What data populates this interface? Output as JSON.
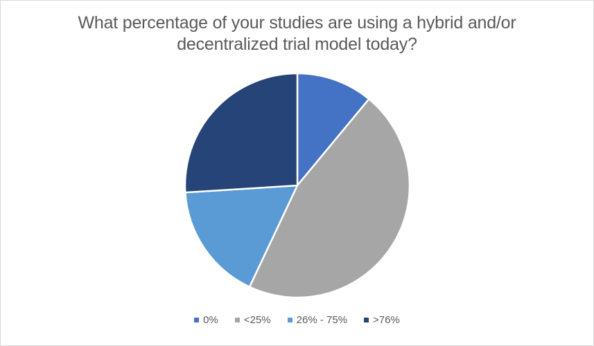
{
  "title": {
    "lines": [
      "What percentage of your studies are using a hybrid and/or",
      "decentralized trial model today?"
    ]
  },
  "chart_data": {
    "type": "pie",
    "title": "What percentage of your studies are using a hybrid and/or decentralized trial model today?",
    "categories": [
      "0%",
      "<25%",
      "26% - 75%",
      ">76%"
    ],
    "values": [
      11,
      46,
      17,
      26
    ],
    "values_note": "percent of circle, estimated from slice angles (no data labels shown)",
    "colors": [
      "#4472C4",
      "#A6A6A6",
      "#5B9BD5",
      "#264478"
    ],
    "slice_border_color": "#FFFFFF",
    "start_angle_deg": 0,
    "direction": "clockwise",
    "legend_position": "bottom",
    "text_color": "#595959",
    "background_color": "#FFFFFF",
    "canvas_border_color": "#D8D8D8"
  }
}
